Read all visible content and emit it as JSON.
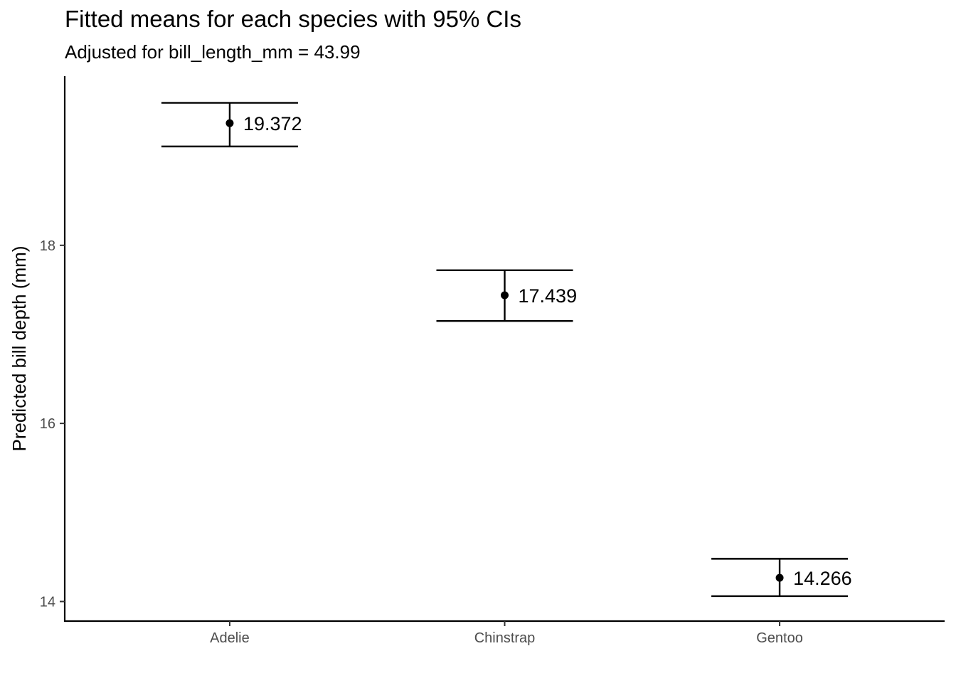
{
  "chart_data": {
    "type": "scatter",
    "title": "Fitted means for each species with 95% CIs",
    "subtitle": "Adjusted for bill_length_mm = 43.99",
    "xlabel": "",
    "ylabel": "Predicted bill depth (mm)",
    "categories": [
      "Adelie",
      "Chinstrap",
      "Gentoo"
    ],
    "values": [
      19.372,
      17.439,
      14.266
    ],
    "ci_lower": [
      19.11,
      17.15,
      14.06
    ],
    "ci_upper": [
      19.6,
      17.72,
      14.48
    ],
    "point_labels": [
      "19.372",
      "17.439",
      "14.266"
    ],
    "y_ticks": [
      14,
      16,
      18
    ],
    "y_tick_labels": [
      "14",
      "16",
      "18"
    ],
    "ylim": [
      13.78,
      19.9
    ],
    "grid": false,
    "legend": "none",
    "color": "#000000"
  }
}
